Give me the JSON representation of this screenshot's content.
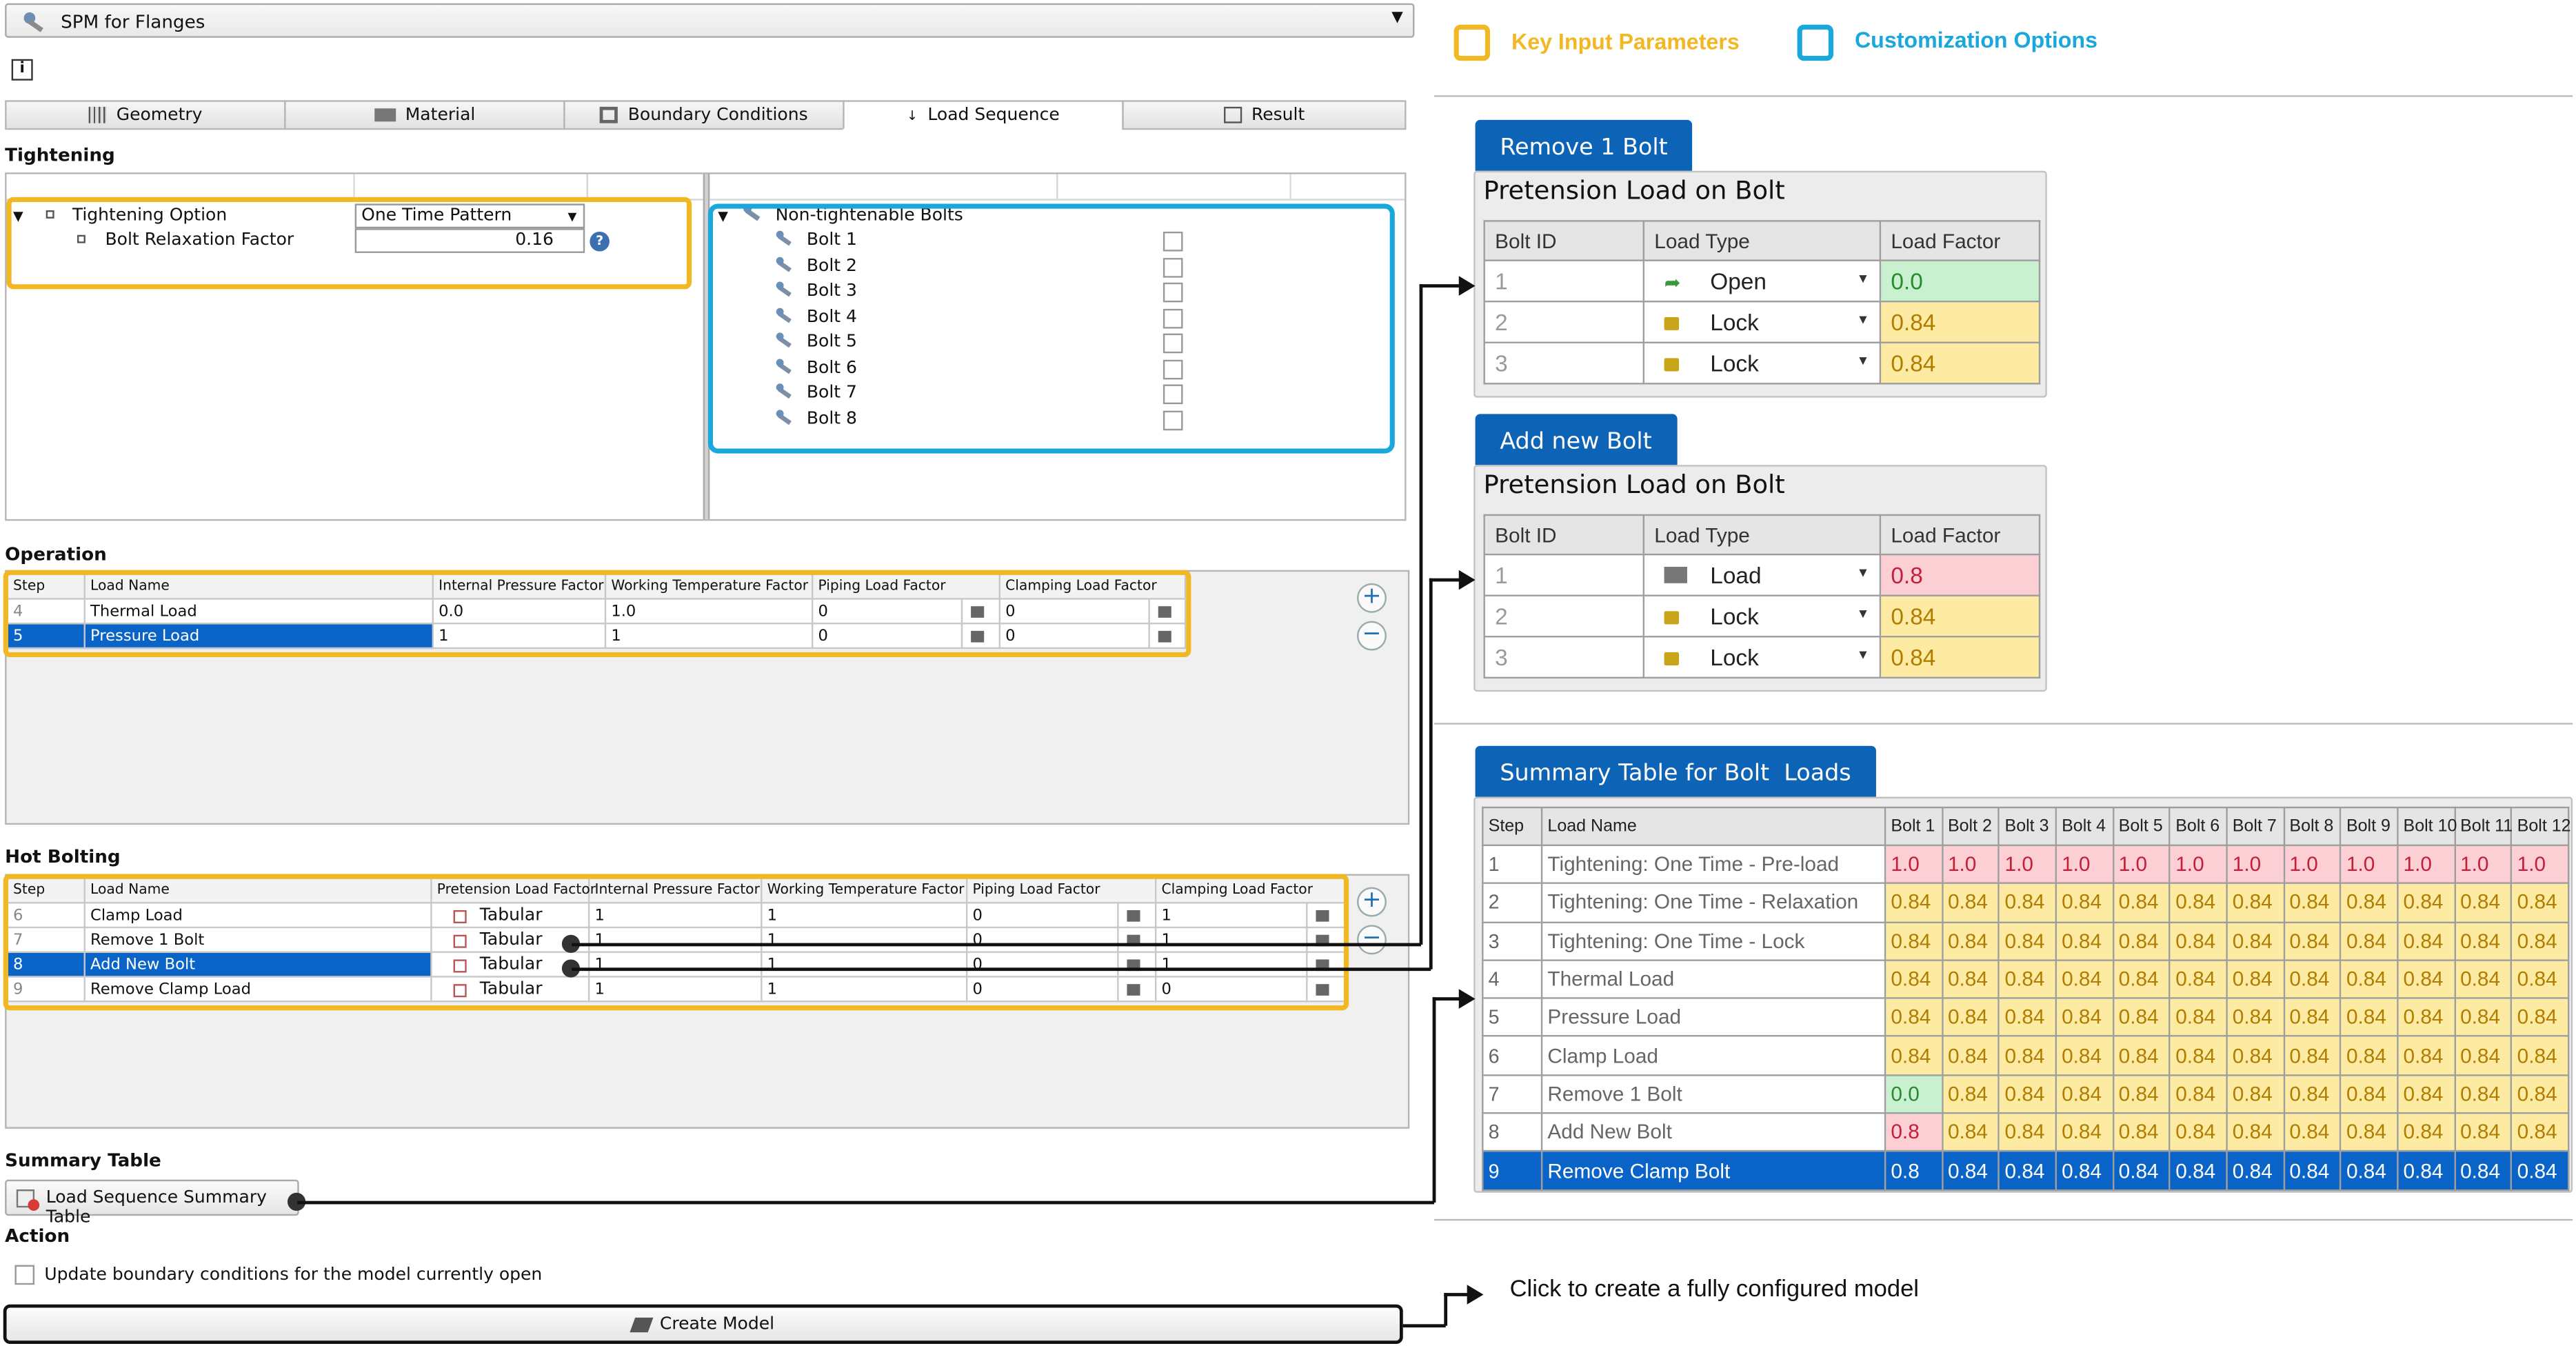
{
  "app": {
    "title": "SPM for Flanges"
  },
  "tabs": [
    {
      "label": "Geometry"
    },
    {
      "label": "Material"
    },
    {
      "label": "Boundary Conditions"
    },
    {
      "label": "Load Sequence"
    },
    {
      "label": "Result"
    }
  ],
  "tightening": {
    "title": "Tightening",
    "option_label": "Tightening Option",
    "option_value": "One Time Pattern",
    "relax_label": "Bolt Relaxation Factor",
    "relax_value": "0.16",
    "bolts_root": "Non-tightenable Bolts",
    "bolts": [
      "Bolt 1",
      "Bolt 2",
      "Bolt 3",
      "Bolt 4",
      "Bolt 5",
      "Bolt 6",
      "Bolt 7",
      "Bolt 8"
    ]
  },
  "operation": {
    "title": "Operation",
    "headers": [
      "Step",
      "Load Name",
      "Internal Pressure Factor",
      "Working Temperature Factor",
      "Piping Load Factor",
      "Clamping Load Factor"
    ],
    "rows": [
      {
        "step": "4",
        "name": "Thermal Load",
        "ipf": "0.0",
        "wtf": "1.0",
        "plf": "0",
        "clf": "0"
      },
      {
        "step": "5",
        "name": "Pressure Load",
        "ipf": "1",
        "wtf": "1",
        "plf": "0",
        "clf": "0"
      }
    ]
  },
  "hot_bolting": {
    "title": "Hot Bolting",
    "headers": [
      "Step",
      "Load Name",
      "Pretension Load Factor",
      "Internal Pressure Factor",
      "Working Temperature Factor",
      "Piping Load Factor",
      "Clamping Load Factor"
    ],
    "rows": [
      {
        "step": "6",
        "name": "Clamp Load",
        "plf": "Tabular",
        "ipf": "1",
        "wtf": "1",
        "pif": "0",
        "clf": "1"
      },
      {
        "step": "7",
        "name": "Remove 1 Bolt",
        "plf": "Tabular",
        "ipf": "1",
        "wtf": "1",
        "pif": "0",
        "clf": "1"
      },
      {
        "step": "8",
        "name": "Add New Bolt",
        "plf": "Tabular",
        "ipf": "1",
        "wtf": "1",
        "pif": "0",
        "clf": "1"
      },
      {
        "step": "9",
        "name": "Remove Clamp Load",
        "plf": "Tabular",
        "ipf": "1",
        "wtf": "1",
        "pif": "0",
        "clf": "0"
      }
    ]
  },
  "summary": {
    "title": "Summary Table",
    "button": "Load Sequence Summary Table"
  },
  "action": {
    "title": "Action",
    "checkbox": "Update boundary conditions for the model currently open",
    "button": "Create Model"
  },
  "legend": {
    "key_input": "Key Input Parameters",
    "customization": "Customization Options",
    "key_color": "#f2b824",
    "custom_color": "#1aa7dc"
  },
  "remove_bolt": {
    "tab": "Remove 1 Bolt",
    "header": "Pretension Load on Bolt",
    "cols": [
      "Bolt ID",
      "Load Type",
      "Load Factor"
    ],
    "rows": [
      {
        "id": "1",
        "type": "Open",
        "factor": "0.0",
        "status": "green"
      },
      {
        "id": "2",
        "type": "Lock",
        "factor": "0.84",
        "status": "yellow"
      },
      {
        "id": "3",
        "type": "Lock",
        "factor": "0.84",
        "status": "yellow"
      }
    ]
  },
  "add_bolt": {
    "tab": "Add new Bolt",
    "header": "Pretension Load on Bolt",
    "cols": [
      "Bolt ID",
      "Load Type",
      "Load Factor"
    ],
    "rows": [
      {
        "id": "1",
        "type": "Load",
        "factor": "0.8",
        "status": "red"
      },
      {
        "id": "2",
        "type": "Lock",
        "factor": "0.84",
        "status": "yellow"
      },
      {
        "id": "3",
        "type": "Lock",
        "factor": "0.84",
        "status": "yellow"
      }
    ]
  },
  "summary_table": {
    "tab": "Summary Table for Bolt  Loads",
    "headers": [
      "Step",
      "Load Name",
      "Bolt 1",
      "Bolt 2",
      "Bolt 3",
      "Bolt 4",
      "Bolt 5",
      "Bolt 6",
      "Bolt 7",
      "Bolt 8",
      "Bolt 9",
      "Bolt 10",
      "Bolt 11",
      "Bolt 12"
    ],
    "rows": [
      {
        "step": "1",
        "name": "Tightening: One Time - Pre-load",
        "vals": [
          "1.0",
          "1.0",
          "1.0",
          "1.0",
          "1.0",
          "1.0",
          "1.0",
          "1.0",
          "1.0",
          "1.0",
          "1.0",
          "1.0"
        ]
      },
      {
        "step": "2",
        "name": "Tightening: One Time - Relaxation",
        "vals": [
          "0.84",
          "0.84",
          "0.84",
          "0.84",
          "0.84",
          "0.84",
          "0.84",
          "0.84",
          "0.84",
          "0.84",
          "0.84",
          "0.84"
        ]
      },
      {
        "step": "3",
        "name": "Tightening: One Time - Lock",
        "vals": [
          "0.84",
          "0.84",
          "0.84",
          "0.84",
          "0.84",
          "0.84",
          "0.84",
          "0.84",
          "0.84",
          "0.84",
          "0.84",
          "0.84"
        ]
      },
      {
        "step": "4",
        "name": "Thermal Load",
        "vals": [
          "0.84",
          "0.84",
          "0.84",
          "0.84",
          "0.84",
          "0.84",
          "0.84",
          "0.84",
          "0.84",
          "0.84",
          "0.84",
          "0.84"
        ]
      },
      {
        "step": "5",
        "name": "Pressure Load",
        "vals": [
          "0.84",
          "0.84",
          "0.84",
          "0.84",
          "0.84",
          "0.84",
          "0.84",
          "0.84",
          "0.84",
          "0.84",
          "0.84",
          "0.84"
        ]
      },
      {
        "step": "6",
        "name": "Clamp Load",
        "vals": [
          "0.84",
          "0.84",
          "0.84",
          "0.84",
          "0.84",
          "0.84",
          "0.84",
          "0.84",
          "0.84",
          "0.84",
          "0.84",
          "0.84"
        ]
      },
      {
        "step": "7",
        "name": "Remove 1 Bolt",
        "vals": [
          "0.0",
          "0.84",
          "0.84",
          "0.84",
          "0.84",
          "0.84",
          "0.84",
          "0.84",
          "0.84",
          "0.84",
          "0.84",
          "0.84"
        ]
      },
      {
        "step": "8",
        "name": "Add New Bolt",
        "vals": [
          "0.8",
          "0.84",
          "0.84",
          "0.84",
          "0.84",
          "0.84",
          "0.84",
          "0.84",
          "0.84",
          "0.84",
          "0.84",
          "0.84"
        ]
      },
      {
        "step": "9",
        "name": "Remove Clamp Bolt",
        "vals": [
          "0.8",
          "0.84",
          "0.84",
          "0.84",
          "0.84",
          "0.84",
          "0.84",
          "0.84",
          "0.84",
          "0.84",
          "0.84",
          "0.84"
        ]
      }
    ]
  },
  "note": "Click to create a fully configured model"
}
